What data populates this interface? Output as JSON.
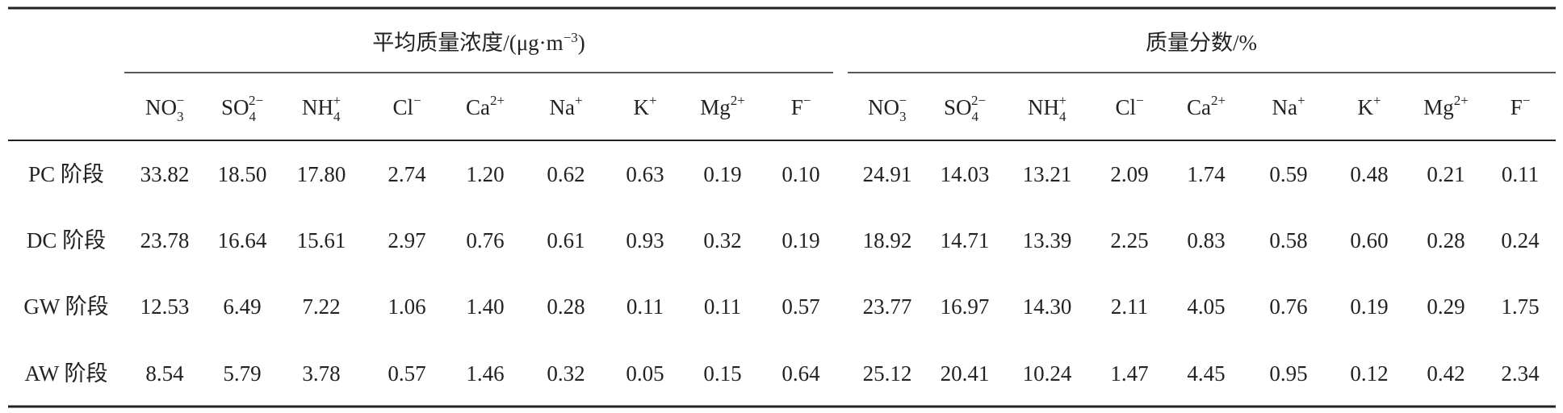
{
  "table": {
    "groups": [
      {
        "text": "平均质量浓度/(μg·m",
        "sup": "−3",
        "end": ")"
      },
      {
        "text": "质量分数/%"
      }
    ],
    "ions": [
      {
        "base": "NO",
        "sub": "3",
        "sup": "−"
      },
      {
        "base": "SO",
        "sub": "4",
        "sup": "2−"
      },
      {
        "base": "NH",
        "sub": "4",
        "sup": "+"
      },
      {
        "base": "Cl",
        "sup": "−"
      },
      {
        "base": "Ca",
        "sup": "2+"
      },
      {
        "base": "Na",
        "sup": "+"
      },
      {
        "base": "K",
        "sup": "+"
      },
      {
        "base": "Mg",
        "sup": "2+"
      },
      {
        "base": "F",
        "sup": "−"
      }
    ],
    "rows": [
      {
        "label": "PC 阶段",
        "values": [
          "33.82",
          "18.50",
          "17.80",
          "2.74",
          "1.20",
          "0.62",
          "0.63",
          "0.19",
          "0.10",
          "24.91",
          "14.03",
          "13.21",
          "2.09",
          "1.74",
          "0.59",
          "0.48",
          "0.21",
          "0.11"
        ]
      },
      {
        "label": "DC 阶段",
        "values": [
          "23.78",
          "16.64",
          "15.61",
          "2.97",
          "0.76",
          "0.61",
          "0.93",
          "0.32",
          "0.19",
          "18.92",
          "14.71",
          "13.39",
          "2.25",
          "0.83",
          "0.58",
          "0.60",
          "0.28",
          "0.24"
        ]
      },
      {
        "label": "GW 阶段",
        "values": [
          "12.53",
          "6.49",
          "7.22",
          "1.06",
          "1.40",
          "0.28",
          "0.11",
          "0.11",
          "0.57",
          "23.77",
          "16.97",
          "14.30",
          "2.11",
          "4.05",
          "0.76",
          "0.19",
          "0.29",
          "1.75"
        ]
      },
      {
        "label": "AW 阶段",
        "values": [
          "8.54",
          "5.79",
          "3.78",
          "0.57",
          "1.46",
          "0.32",
          "0.05",
          "0.15",
          "0.64",
          "25.12",
          "20.41",
          "10.24",
          "1.47",
          "4.45",
          "0.95",
          "0.12",
          "0.42",
          "2.34"
        ]
      }
    ]
  }
}
